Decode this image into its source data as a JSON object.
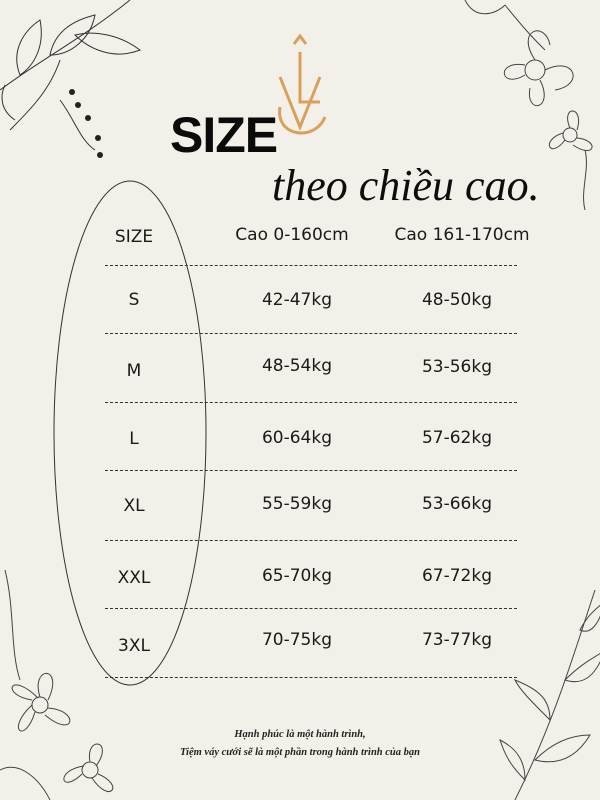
{
  "header": {
    "title": "SIZE",
    "subtitle": "theo chiều cao.",
    "logo_text": "VL",
    "logo_color": "#d9a05b"
  },
  "table": {
    "columns": [
      "SIZE",
      "Cao 0-160cm",
      "Cao 161-170cm"
    ],
    "rows": [
      {
        "size": "S",
        "col1": "42-47kg",
        "col2": "48-50kg"
      },
      {
        "size": "M",
        "col1": "48-54kg",
        "col2": "53-56kg"
      },
      {
        "size": "L",
        "col1": "60-64kg",
        "col2": "57-62kg"
      },
      {
        "size": "XL",
        "col1": "55-59kg",
        "col2": "53-66kg"
      },
      {
        "size": "XXL",
        "col1": "65-70kg",
        "col2": "67-72kg"
      },
      {
        "size": "3XL",
        "col1": "70-75kg",
        "col2": "73-77kg"
      }
    ]
  },
  "footer": {
    "line1": "Hạnh phúc là một hành trình,",
    "line2": "Tiệm váy cưới sẽ là một phần trong hành trình của bạn"
  }
}
